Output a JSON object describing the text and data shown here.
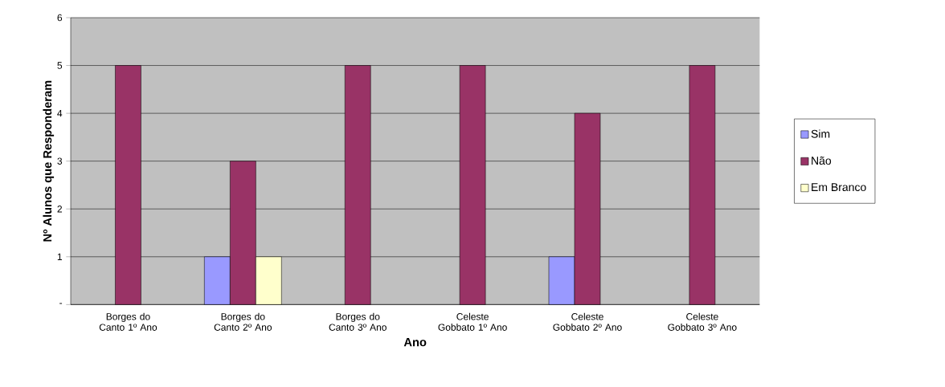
{
  "chart_data": {
    "type": "bar",
    "xlabel": "Ano",
    "ylabel": "Nº Alunos que Responderam",
    "categories": [
      "Borges do Canto 1º Ano",
      "Borges do Canto 2º Ano",
      "Borges do Canto 3º Ano",
      "Celeste Gobbato 1º Ano",
      "Celeste Gobbato 2º Ano",
      "Celeste Gobbato 3º Ano"
    ],
    "series": [
      {
        "name": "Sim",
        "color": "#9999ff",
        "values": [
          null,
          1,
          null,
          null,
          1,
          null
        ]
      },
      {
        "name": "Não",
        "color": "#993366",
        "values": [
          5,
          3,
          5,
          5,
          4,
          5
        ]
      },
      {
        "name": "Em Branco",
        "color": "#ffffcc",
        "values": [
          null,
          1,
          null,
          null,
          null,
          null
        ]
      }
    ],
    "ylim": [
      0,
      6
    ],
    "yticks": [
      {
        "value": 0,
        "label": "-"
      },
      1,
      2,
      3,
      4,
      5,
      6
    ],
    "grid": "y",
    "legend": "right"
  }
}
